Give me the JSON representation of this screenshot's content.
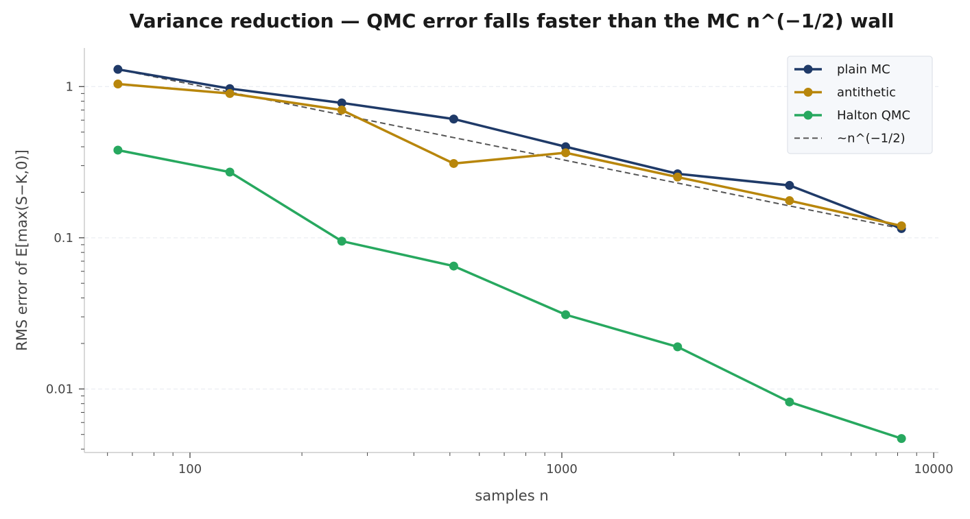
{
  "chart_data": {
    "type": "line",
    "title": "Variance reduction — QMC error falls faster than the MC n^(−1/2) wall",
    "xlabel": "samples n",
    "ylabel": "RMS error of E[max(S−K,0)]",
    "xscale": "log",
    "yscale": "log",
    "xlim": [
      52,
      10300
    ],
    "ylim": [
      0.0038,
      1.8
    ],
    "x_ticks": [
      {
        "value": 100,
        "label": "100"
      },
      {
        "value": 1000,
        "label": "1000"
      },
      {
        "value": 10000,
        "label": "10000"
      }
    ],
    "y_ticks": [
      {
        "value": 1,
        "label": "1"
      },
      {
        "value": 0.1,
        "label": "0.1"
      },
      {
        "value": 0.01,
        "label": "0.01"
      }
    ],
    "grid": "horizontal, major ticks",
    "legend_position": "top-right",
    "x": [
      64,
      128,
      256,
      512,
      1024,
      2048,
      4096,
      8192
    ],
    "series": [
      {
        "name": "plain MC",
        "color": "#1f3a68",
        "style": "solid",
        "marker": "circle",
        "values": [
          1.3,
          0.97,
          0.78,
          0.61,
          0.4,
          0.265,
          0.222,
          0.115
        ]
      },
      {
        "name": "antithetic",
        "color": "#b8860b",
        "style": "solid",
        "marker": "circle",
        "values": [
          1.04,
          0.9,
          0.7,
          0.31,
          0.365,
          0.252,
          0.176,
          0.12
        ]
      },
      {
        "name": "Halton QMC",
        "color": "#27a85f",
        "style": "solid",
        "marker": "circle",
        "values": [
          0.38,
          0.272,
          0.095,
          0.065,
          0.031,
          0.019,
          0.0082,
          0.0047
        ]
      },
      {
        "name": "~n^(−1/2)",
        "color": "#555555",
        "style": "dashed",
        "marker": "none",
        "values": [
          1.3,
          0.919,
          0.65,
          0.46,
          0.325,
          0.23,
          0.1625,
          0.115
        ]
      }
    ]
  }
}
